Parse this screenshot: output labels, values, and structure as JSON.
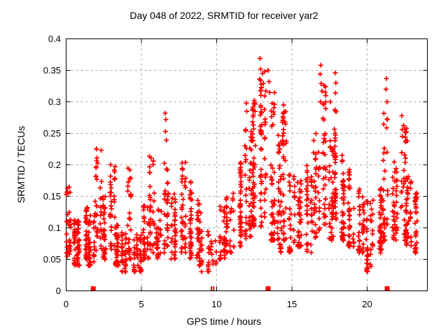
{
  "title": "Day 048 of 2022, SRMTID for receiver yar2",
  "chart_data": {
    "type": "scatter",
    "title": "Day 048 of 2022, SRMTID for receiver yar2",
    "xlabel": "GPS time / hours",
    "ylabel": "SRMTID / TECUs",
    "xlim": [
      0,
      24
    ],
    "ylim": [
      0,
      0.4
    ],
    "xtick_values": [
      0,
      5,
      10,
      15,
      20
    ],
    "xtick_labels": [
      "0",
      "5",
      "10",
      "15",
      "20"
    ],
    "ytick_values": [
      0,
      0.05,
      0.1,
      0.15,
      0.2,
      0.25,
      0.3,
      0.35,
      0.4
    ],
    "ytick_labels": [
      "0",
      "0.05",
      "0.1",
      "0.15",
      "0.2",
      "0.25",
      "0.3",
      "0.35",
      "0.4"
    ],
    "grid": true,
    "grid_style": "dashed",
    "legend": "none",
    "axis_color": "#000000",
    "grid_color": "#a6a6a6",
    "background": "#ffffff",
    "series": [
      {
        "name": "srmtid-points",
        "marker": "plus",
        "color": "#ff0000",
        "marker_size": 7,
        "bins_format": "[hour_start, hour_end, y_min, y_max, point_count] — density envelope of the dense scatter cloud read from the plot",
        "bins": [
          [
            0.0,
            0.3,
            0.05,
            0.165,
            30
          ],
          [
            0.3,
            0.6,
            0.04,
            0.12,
            30
          ],
          [
            0.6,
            1.0,
            0.04,
            0.115,
            35
          ],
          [
            1.0,
            1.4,
            0.05,
            0.135,
            35
          ],
          [
            1.4,
            1.9,
            0.04,
            0.12,
            40
          ],
          [
            1.9,
            2.35,
            0.06,
            0.23,
            35
          ],
          [
            2.35,
            2.8,
            0.05,
            0.15,
            35
          ],
          [
            2.8,
            3.25,
            0.06,
            0.205,
            35
          ],
          [
            3.25,
            3.7,
            0.04,
            0.105,
            35
          ],
          [
            3.7,
            4.1,
            0.03,
            0.095,
            35
          ],
          [
            4.1,
            4.45,
            0.05,
            0.205,
            28
          ],
          [
            4.45,
            5.0,
            0.03,
            0.09,
            40
          ],
          [
            5.0,
            5.5,
            0.05,
            0.135,
            35
          ],
          [
            5.5,
            5.95,
            0.06,
            0.215,
            32
          ],
          [
            5.95,
            6.4,
            0.05,
            0.135,
            32
          ],
          [
            6.4,
            6.9,
            0.06,
            0.225,
            32
          ],
          [
            6.9,
            7.4,
            0.05,
            0.155,
            35
          ],
          [
            7.4,
            7.95,
            0.06,
            0.205,
            38
          ],
          [
            7.95,
            8.45,
            0.05,
            0.175,
            40
          ],
          [
            8.45,
            9.0,
            0.04,
            0.145,
            35
          ],
          [
            9.0,
            9.55,
            0.03,
            0.105,
            22
          ],
          [
            9.55,
            10.05,
            0.04,
            0.1,
            12
          ],
          [
            10.05,
            10.6,
            0.05,
            0.135,
            30
          ],
          [
            10.6,
            11.2,
            0.06,
            0.165,
            38
          ],
          [
            11.2,
            11.8,
            0.07,
            0.205,
            42
          ],
          [
            11.8,
            12.3,
            0.08,
            0.26,
            45
          ],
          [
            12.3,
            12.85,
            0.1,
            0.305,
            52
          ],
          [
            12.85,
            13.35,
            0.1,
            0.335,
            52
          ],
          [
            13.35,
            13.85,
            0.08,
            0.315,
            45
          ],
          [
            13.85,
            14.3,
            0.06,
            0.25,
            40
          ],
          [
            14.3,
            14.75,
            0.08,
            0.295,
            35
          ],
          [
            14.75,
            15.25,
            0.06,
            0.185,
            35
          ],
          [
            15.25,
            15.8,
            0.07,
            0.175,
            36
          ],
          [
            15.8,
            16.35,
            0.06,
            0.205,
            40
          ],
          [
            16.35,
            16.85,
            0.08,
            0.25,
            40
          ],
          [
            16.85,
            17.25,
            0.1,
            0.33,
            36
          ],
          [
            17.25,
            17.75,
            0.08,
            0.25,
            40
          ],
          [
            17.75,
            18.15,
            0.1,
            0.315,
            36
          ],
          [
            18.15,
            18.7,
            0.08,
            0.225,
            40
          ],
          [
            18.7,
            19.3,
            0.07,
            0.2,
            40
          ],
          [
            19.3,
            19.9,
            0.06,
            0.165,
            40
          ],
          [
            19.9,
            20.5,
            0.03,
            0.145,
            40
          ],
          [
            20.5,
            21.0,
            0.06,
            0.165,
            40
          ],
          [
            21.0,
            21.5,
            0.08,
            0.285,
            32
          ],
          [
            21.5,
            22.0,
            0.08,
            0.205,
            40
          ],
          [
            22.0,
            22.6,
            0.08,
            0.265,
            40
          ],
          [
            22.6,
            23.1,
            0.07,
            0.185,
            35
          ],
          [
            23.1,
            23.45,
            0.06,
            0.16,
            28
          ]
        ],
        "peak_points": [
          [
            0.08,
            0.163
          ],
          [
            0.12,
            0.155
          ],
          [
            2.02,
            0.225
          ],
          [
            2.05,
            0.211
          ],
          [
            6.58,
            0.282
          ],
          [
            6.63,
            0.272
          ],
          [
            6.6,
            0.253
          ],
          [
            6.66,
            0.239
          ],
          [
            11.97,
            0.298
          ],
          [
            12.0,
            0.285
          ],
          [
            12.88,
            0.369
          ],
          [
            12.92,
            0.352
          ],
          [
            13.05,
            0.345
          ],
          [
            13.2,
            0.348
          ],
          [
            12.85,
            0.336
          ],
          [
            13.1,
            0.329
          ],
          [
            12.95,
            0.318
          ],
          [
            13.42,
            0.35
          ],
          [
            13.48,
            0.332
          ],
          [
            13.52,
            0.315
          ],
          [
            14.45,
            0.295
          ],
          [
            14.5,
            0.284
          ],
          [
            14.42,
            0.27
          ],
          [
            16.92,
            0.358
          ],
          [
            16.88,
            0.344
          ],
          [
            16.95,
            0.329
          ],
          [
            17.0,
            0.317
          ],
          [
            16.9,
            0.3
          ],
          [
            17.55,
            0.3
          ],
          [
            17.88,
            0.346
          ],
          [
            17.92,
            0.33
          ],
          [
            17.9,
            0.314
          ],
          [
            21.28,
            0.337
          ],
          [
            21.25,
            0.32
          ],
          [
            21.32,
            0.3
          ],
          [
            21.35,
            0.272
          ],
          [
            22.3,
            0.278
          ],
          [
            22.62,
            0.258
          ],
          [
            22.68,
            0.238
          ],
          [
            23.3,
            0.155
          ]
        ]
      },
      {
        "name": "axis-flag-squares",
        "marker": "filled-square",
        "color": "#ff0000",
        "points": [
          [
            1.8,
            0
          ],
          [
            13.42,
            0
          ],
          [
            21.33,
            0
          ]
        ]
      },
      {
        "name": "axis-flag-dashes",
        "marker": "thin-vbar",
        "color": "#ff0000",
        "points": [
          [
            9.65,
            0
          ],
          [
            9.8,
            0
          ]
        ]
      }
    ]
  }
}
